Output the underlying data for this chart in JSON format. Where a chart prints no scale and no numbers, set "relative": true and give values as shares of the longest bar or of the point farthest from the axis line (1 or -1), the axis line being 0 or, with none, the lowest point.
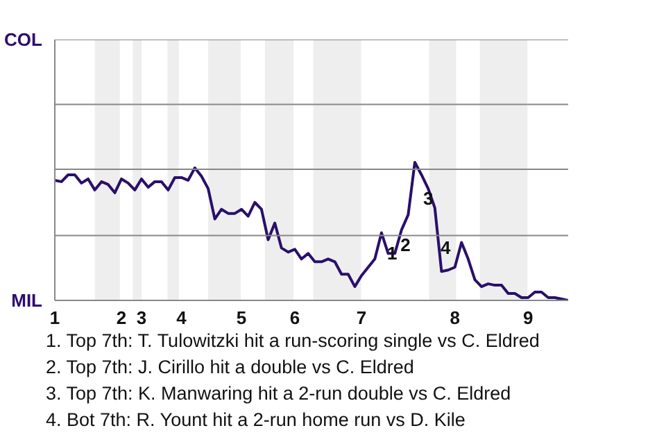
{
  "chart_data": {
    "type": "line",
    "relative": true,
    "categories": [
      "1",
      null,
      null,
      null,
      null,
      null,
      null,
      null,
      null,
      null,
      "2",
      null,
      null,
      "3",
      null,
      null,
      null,
      null,
      null,
      "4",
      null,
      null,
      null,
      null,
      null,
      null,
      null,
      null,
      "5",
      null,
      null,
      null,
      null,
      null,
      null,
      null,
      "6",
      null,
      null,
      null,
      null,
      null,
      null,
      null,
      null,
      null,
      "7",
      null,
      null,
      null,
      null,
      null,
      null,
      null,
      null,
      null,
      null,
      null,
      null,
      null,
      "8",
      null,
      null,
      null,
      null,
      null,
      null,
      null,
      null,
      null,
      null,
      "9",
      null,
      null,
      null,
      null,
      null,
      null
    ],
    "series": [
      {
        "color": "#2a0f6b",
        "values": [
          0.87,
          0.86,
          0.91,
          0.91,
          0.85,
          0.88,
          0.8,
          0.86,
          0.84,
          0.78,
          0.88,
          0.85,
          0.8,
          0.88,
          0.82,
          0.86,
          0.86,
          0.8,
          0.89,
          0.89,
          0.87,
          0.96,
          0.9,
          0.81,
          0.59,
          0.66,
          0.63,
          0.63,
          0.66,
          0.61,
          0.71,
          0.66,
          0.44,
          0.56,
          0.38,
          0.35,
          0.37,
          0.3,
          0.34,
          0.28,
          0.28,
          0.3,
          0.28,
          0.19,
          0.19,
          0.1,
          0.18,
          0.24,
          0.3,
          0.49,
          0.34,
          0.34,
          0.51,
          0.62,
          1,
          0.91,
          0.81,
          0.67,
          0.21,
          0.22,
          0.24,
          0.42,
          0.3,
          0.15,
          0.1,
          0.12,
          0.11,
          0.11,
          0.05,
          0.05,
          0.02,
          0.02,
          0.06,
          0.06,
          0.02,
          0.02,
          0.01,
          0
        ]
      }
    ],
    "ref_lines": [
      {
        "axis": "y",
        "value": 0.47,
        "color": "#888888"
      },
      {
        "axis": "y",
        "value": 0.95,
        "color": "#888888"
      },
      {
        "axis": "y",
        "value": 1.42,
        "color": "#888888"
      },
      {
        "axis": "y",
        "value": 1.89,
        "color": "#888888"
      }
    ],
    "annotations": [
      "COL",
      "MIL",
      "1",
      "2",
      "3",
      "4",
      "1. Top 7th: T. Tulowitzki hit a run-scoring single vs C. Eldred",
      "2. Top 7th: J. Cirillo hit a double vs C. Eldred",
      "3. Top 7th: K. Manwaring hit a 2-run double vs C. Eldred",
      "4. Bot 7th: R. Yount hit a 2-run home run vs D. Kile"
    ]
  }
}
